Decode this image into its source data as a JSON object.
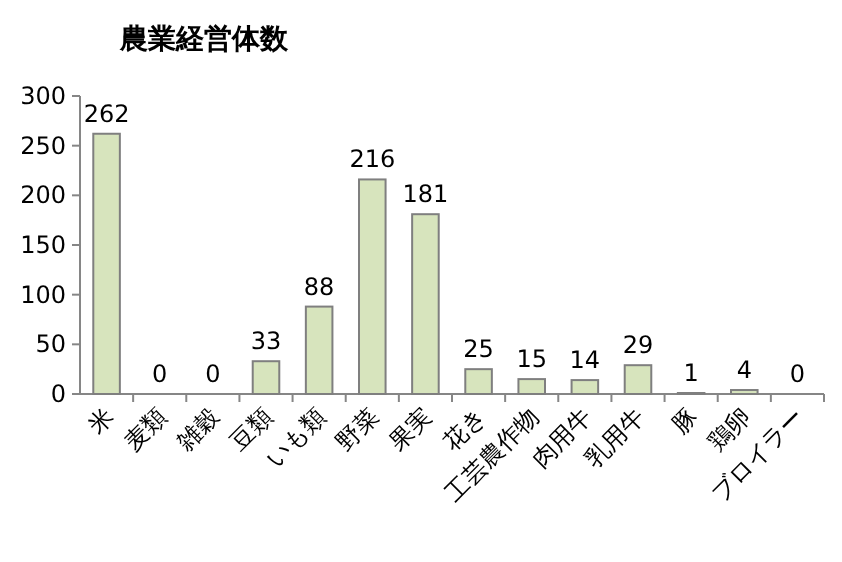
{
  "chart_data": {
    "type": "bar",
    "title": "農業経営体数",
    "categories": [
      "米",
      "麦類",
      "雑穀",
      "豆類",
      "いも類",
      "野菜",
      "果実",
      "花き",
      "工芸農作物",
      "肉用牛",
      "乳用牛",
      "豚",
      "鶏卵",
      "ブロイラー"
    ],
    "values": [
      262,
      0,
      0,
      33,
      88,
      216,
      181,
      25,
      15,
      14,
      29,
      1,
      4,
      0
    ],
    "color": "#d7e4bd",
    "ylim": [
      0,
      300
    ],
    "yticks": [
      0,
      50,
      100,
      150,
      200,
      250,
      300
    ],
    "data_labels": true
  }
}
